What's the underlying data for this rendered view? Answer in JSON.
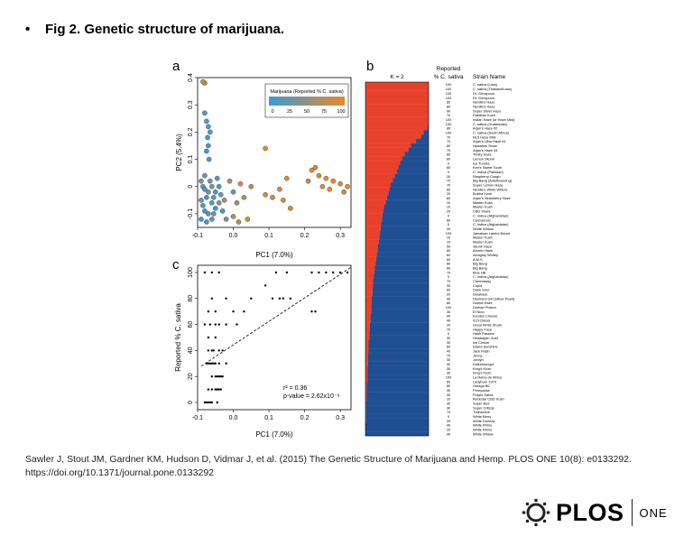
{
  "heading": {
    "bullet": "•",
    "text": "Fig 2. Genetic structure of marijuana."
  },
  "panels": {
    "a": "a",
    "b": "b",
    "c": "c"
  },
  "chart_data": [
    {
      "type": "scatter",
      "panel": "a",
      "xlabel": "PC1 (7.0%)",
      "ylabel": "PC2 (5.4%)",
      "xlim": [
        -0.1,
        0.33
      ],
      "ylim": [
        -0.15,
        0.4
      ],
      "xticks": [
        "-0.1",
        "0.0",
        "0.1",
        "0.2",
        "0.3"
      ],
      "yticks": [
        "-0.1",
        "0",
        "0.1",
        "0.2",
        "0.3",
        "0.4"
      ],
      "legend": {
        "title": "Marijuana (Reported % C. sativa)",
        "ticks": [
          "0",
          "25",
          "50",
          "75",
          "100"
        ],
        "low_color": "#3a9ad9",
        "high_color": "#e58a2a",
        "position": "top-right"
      },
      "points": [
        {
          "x": -0.08,
          "y": 0.38,
          "s": 90
        },
        {
          "x": -0.085,
          "y": 0.385,
          "s": 85
        },
        {
          "x": -0.08,
          "y": 0.27,
          "s": 10
        },
        {
          "x": -0.075,
          "y": 0.24,
          "s": 15
        },
        {
          "x": -0.07,
          "y": 0.22,
          "s": 10
        },
        {
          "x": -0.065,
          "y": 0.2,
          "s": 20
        },
        {
          "x": -0.072,
          "y": 0.18,
          "s": 5
        },
        {
          "x": -0.07,
          "y": 0.15,
          "s": 10
        },
        {
          "x": -0.075,
          "y": 0.13,
          "s": 0
        },
        {
          "x": -0.068,
          "y": 0.1,
          "s": 15
        },
        {
          "x": -0.08,
          "y": 0.04,
          "s": 25
        },
        {
          "x": -0.09,
          "y": 0.02,
          "s": 30
        },
        {
          "x": -0.085,
          "y": 0.0,
          "s": 20
        },
        {
          "x": -0.08,
          "y": -0.01,
          "s": 10
        },
        {
          "x": -0.07,
          "y": -0.02,
          "s": 40
        },
        {
          "x": -0.075,
          "y": -0.04,
          "s": 5
        },
        {
          "x": -0.09,
          "y": -0.05,
          "s": 30
        },
        {
          "x": -0.085,
          "y": -0.07,
          "s": 15
        },
        {
          "x": -0.08,
          "y": -0.09,
          "s": 0
        },
        {
          "x": -0.07,
          "y": -0.1,
          "s": 20
        },
        {
          "x": -0.09,
          "y": -0.12,
          "s": 10
        },
        {
          "x": -0.075,
          "y": -0.13,
          "s": 0
        },
        {
          "x": -0.06,
          "y": -0.12,
          "s": 30
        },
        {
          "x": -0.055,
          "y": -0.1,
          "s": 25
        },
        {
          "x": -0.05,
          "y": -0.08,
          "s": 0
        },
        {
          "x": -0.06,
          "y": -0.06,
          "s": 10
        },
        {
          "x": -0.055,
          "y": -0.04,
          "s": 20
        },
        {
          "x": -0.05,
          "y": -0.02,
          "s": 0
        },
        {
          "x": -0.06,
          "y": 0.0,
          "s": 40
        },
        {
          "x": -0.065,
          "y": 0.02,
          "s": 30
        },
        {
          "x": -0.045,
          "y": 0.03,
          "s": 10
        },
        {
          "x": -0.04,
          "y": 0.0,
          "s": 15
        },
        {
          "x": -0.035,
          "y": -0.03,
          "s": 20
        },
        {
          "x": -0.04,
          "y": -0.06,
          "s": 40
        },
        {
          "x": -0.03,
          "y": -0.09,
          "s": 10
        },
        {
          "x": -0.02,
          "y": -0.12,
          "s": 30
        },
        {
          "x": -0.025,
          "y": -0.05,
          "s": 60
        },
        {
          "x": -0.01,
          "y": 0.02,
          "s": 70
        },
        {
          "x": 0.0,
          "y": -0.02,
          "s": 20
        },
        {
          "x": 0.01,
          "y": -0.06,
          "s": 60
        },
        {
          "x": 0.02,
          "y": 0.01,
          "s": 80
        },
        {
          "x": 0.03,
          "y": -0.04,
          "s": 70
        },
        {
          "x": 0.04,
          "y": -0.12,
          "s": 80
        },
        {
          "x": 0.05,
          "y": 0.0,
          "s": 75
        },
        {
          "x": 0.0,
          "y": -0.11,
          "s": 75
        },
        {
          "x": 0.015,
          "y": -0.13,
          "s": 80
        },
        {
          "x": 0.09,
          "y": 0.14,
          "s": 100
        },
        {
          "x": 0.09,
          "y": -0.03,
          "s": 90
        },
        {
          "x": 0.11,
          "y": -0.04,
          "s": 80
        },
        {
          "x": 0.13,
          "y": -0.01,
          "s": 80
        },
        {
          "x": 0.15,
          "y": 0.03,
          "s": 100
        },
        {
          "x": 0.14,
          "y": -0.05,
          "s": 80
        },
        {
          "x": 0.16,
          "y": -0.08,
          "s": 90
        },
        {
          "x": 0.22,
          "y": 0.06,
          "s": 100
        },
        {
          "x": 0.23,
          "y": 0.07,
          "s": 90
        },
        {
          "x": 0.24,
          "y": 0.04,
          "s": 100
        },
        {
          "x": 0.21,
          "y": 0.02,
          "s": 80
        },
        {
          "x": 0.26,
          "y": 0.03,
          "s": 100
        },
        {
          "x": 0.25,
          "y": 0.0,
          "s": 90
        },
        {
          "x": 0.28,
          "y": 0.02,
          "s": 100
        },
        {
          "x": 0.27,
          "y": -0.01,
          "s": 100
        },
        {
          "x": 0.3,
          "y": 0.01,
          "s": 90
        },
        {
          "x": 0.32,
          "y": 0.0,
          "s": 100
        },
        {
          "x": 0.31,
          "y": -0.02,
          "s": 80
        }
      ]
    },
    {
      "type": "bar",
      "panel": "b",
      "title": "K = 2",
      "header_reported": "Reported",
      "header_reported_2": "% C. sativa",
      "header_strain": "Strain Name",
      "colors": {
        "cluster1": "#e8412b",
        "cluster2": "#1f4f93"
      },
      "rows": [
        {
          "r": "100",
          "n": "C. sativa (Laos)",
          "f": 1.0
        },
        {
          "r": "100",
          "n": "C. sativa (Thailand/Laos)",
          "f": 1.0
        },
        {
          "r": "100",
          "n": "Dr. Grinspoon",
          "f": 1.0
        },
        {
          "r": "100",
          "n": "Dr. Grinspoon",
          "f": 1.0
        },
        {
          "r": "80",
          "n": "Neville's Haze",
          "f": 1.0
        },
        {
          "r": "80",
          "n": "Neville's Haze",
          "f": 1.0
        },
        {
          "r": "90",
          "n": "Super Silver Haze",
          "f": 1.0
        },
        {
          "r": "70",
          "n": "Pakistan Kush",
          "f": 1.0
        },
        {
          "r": "100",
          "n": "Indian Haze (or Haze Mist)",
          "f": 1.0
        },
        {
          "r": "100",
          "n": "C. sativa (Guatemala)",
          "f": 1.0
        },
        {
          "r": "80",
          "n": "Arjan's Haze #2",
          "f": 0.98
        },
        {
          "r": "100",
          "n": "C. sativa (South Africa)",
          "f": 0.92
        },
        {
          "r": "70",
          "n": "NL5 Haze Mist",
          "f": 0.88
        },
        {
          "r": "70",
          "n": "Arjan's Ultra Haze #1",
          "f": 0.8
        },
        {
          "r": "80",
          "n": "Hawaiian Snow",
          "f": 0.72
        },
        {
          "r": "70",
          "n": "Arjan's Haze #3",
          "f": 0.68
        },
        {
          "r": "60",
          "n": "Trinity Haze",
          "f": 0.62
        },
        {
          "r": "60",
          "n": "Lemon Skunk",
          "f": 0.58
        },
        {
          "r": "0",
          "n": "Ice Tundra",
          "f": 0.55
        },
        {
          "r": "60",
          "n": "Ken's Sweet Tooth",
          "f": 0.52
        },
        {
          "r": "0",
          "n": "C. indica (Pakistan)",
          "f": 0.5
        },
        {
          "r": "30",
          "n": "Raspberry Cough",
          "f": 0.46
        },
        {
          "r": "70",
          "n": "Big Bang (Autoflowering)",
          "f": 0.43
        },
        {
          "r": "70",
          "n": "Super Lemon Haze",
          "f": 0.4
        },
        {
          "r": "60",
          "n": "Neville's White Widow",
          "f": 0.38
        },
        {
          "r": "20",
          "n": "Bubba Kush",
          "f": 0.36
        },
        {
          "r": "80",
          "n": "Arjan's Strawberry Haze",
          "f": 0.34
        },
        {
          "r": "10",
          "n": "Master Kush",
          "f": 0.32
        },
        {
          "r": "10",
          "n": "Master Kush",
          "f": 0.3
        },
        {
          "r": "20",
          "n": "CBD Shark",
          "f": 0.28
        },
        {
          "r": "0",
          "n": "C. indica (Afghanistan)",
          "f": 0.27
        },
        {
          "r": "60",
          "n": "Cannatonic",
          "f": 0.26
        },
        {
          "r": "0",
          "n": "C. indica (Afghanistan)",
          "f": 0.25
        },
        {
          "r": "40",
          "n": "White Widow",
          "f": 0.24
        },
        {
          "r": "100",
          "n": "Jamaican Lambs Bread",
          "f": 0.23
        },
        {
          "r": "10",
          "n": "Master Kush",
          "f": 0.22
        },
        {
          "r": "10",
          "n": "Master Kush",
          "f": 0.21
        },
        {
          "r": "50",
          "n": "Skunk Haze",
          "f": 0.2
        },
        {
          "r": "80",
          "n": "Atomic Haze",
          "f": 0.19
        },
        {
          "r": "60",
          "n": "Almighty Whitey",
          "f": 0.18
        },
        {
          "r": "60",
          "n": "A.M.S.",
          "f": 0.17
        },
        {
          "r": "60",
          "n": "Big Bang",
          "f": 0.16
        },
        {
          "r": "60",
          "n": "Big Bang",
          "f": 0.15
        },
        {
          "r": "70",
          "n": "Blue Hill",
          "f": 0.14
        },
        {
          "r": "0",
          "n": "C. indica (Afghanistan)",
          "f": 0.13
        },
        {
          "r": "70",
          "n": "Chemdawg",
          "f": 0.12
        },
        {
          "r": "30",
          "n": "Cupid",
          "f": 0.12
        },
        {
          "r": "60",
          "n": "Dank Sour",
          "f": 0.11
        },
        {
          "r": "20",
          "n": "Delahaze",
          "f": 0.11
        },
        {
          "r": "40",
          "n": "Diamond Girl (Silver Pearl)",
          "f": 0.1
        },
        {
          "r": "80",
          "n": "Donna Haze",
          "f": 0.1
        },
        {
          "r": "100",
          "n": "Durban Poison",
          "f": 0.09
        },
        {
          "r": "30",
          "n": "El Nino",
          "f": 0.09
        },
        {
          "r": "40",
          "n": "Exodus Cheese",
          "f": 0.08
        },
        {
          "r": "40",
          "n": "G13 Diesel",
          "f": 0.08
        },
        {
          "r": "20",
          "n": "Great White Shark",
          "f": 0.07
        },
        {
          "r": "70",
          "n": "Happy Face",
          "f": 0.07
        },
        {
          "r": "0",
          "n": "Hash Passion",
          "f": 0.06
        },
        {
          "r": "30",
          "n": "Himalayan Gold",
          "f": 0.06
        },
        {
          "r": "30",
          "n": "Ice Cream",
          "f": 0.05
        },
        {
          "r": "60",
          "n": "Island Sunshine",
          "f": 0.05
        },
        {
          "r": "40",
          "n": "Jack Flash",
          "f": 0.05
        },
        {
          "r": "70",
          "n": "Jenny",
          "f": 0.04
        },
        {
          "r": "30",
          "n": "Jordyn",
          "f": 0.04
        },
        {
          "r": "40",
          "n": "Kaleidoscope",
          "f": 0.04
        },
        {
          "r": "30",
          "n": "King's Kush",
          "f": 0.03
        },
        {
          "r": "30",
          "n": "King's Kush",
          "f": 0.03
        },
        {
          "r": "100",
          "n": "La Reina de Africa",
          "f": 0.03
        },
        {
          "r": "60",
          "n": "Ladyburn 1974",
          "f": 0.03
        },
        {
          "r": "80",
          "n": "Omega BC",
          "f": 0.02
        },
        {
          "r": "30",
          "n": "Pennywise",
          "f": 0.02
        },
        {
          "r": "30",
          "n": "Purple Satva",
          "f": 0.02
        },
        {
          "r": "10",
          "n": "Rockstar CBD Kush",
          "f": 0.02
        },
        {
          "r": "30",
          "n": "Super Bud",
          "f": 0.01
        },
        {
          "r": "30",
          "n": "Super Critical",
          "f": 0.01
        },
        {
          "r": "70",
          "n": "Trainwreck",
          "f": 0.01
        },
        {
          "r": "0",
          "n": "White Berry",
          "f": 0.01
        },
        {
          "r": "20",
          "n": "White Domina",
          "f": 0.01
        },
        {
          "r": "40",
          "n": "White Rhino",
          "f": 0.0
        },
        {
          "r": "20",
          "n": "White Rhino",
          "f": 0.0
        },
        {
          "r": "40",
          "n": "White Widow",
          "f": 0.0
        }
      ]
    },
    {
      "type": "scatter",
      "panel": "c",
      "xlabel": "PC1 (7.0%)",
      "ylabel": "Reported % C. sativa",
      "xlim": [
        -0.1,
        0.33
      ],
      "ylim": [
        0,
        100
      ],
      "xticks": [
        "-0.1",
        "0.0",
        "0.1",
        "0.2",
        "0.3"
      ],
      "yticks": [
        "0",
        "20",
        "40",
        "60",
        "80",
        "100"
      ],
      "annotation_r2": "r² = 0.36",
      "annotation_p": "p-value = 2.62x10⁻⁹",
      "trendline": {
        "x": [
          -0.09,
          0.33
        ],
        "y": [
          28,
          104
        ]
      },
      "points": [
        {
          "x": -0.08,
          "y": 0
        },
        {
          "x": -0.075,
          "y": 0
        },
        {
          "x": -0.07,
          "y": 0
        },
        {
          "x": -0.065,
          "y": 0
        },
        {
          "x": -0.06,
          "y": 0
        },
        {
          "x": -0.045,
          "y": 0
        },
        {
          "x": -0.07,
          "y": 10
        },
        {
          "x": -0.06,
          "y": 10
        },
        {
          "x": -0.05,
          "y": 10
        },
        {
          "x": -0.045,
          "y": 10
        },
        {
          "x": -0.04,
          "y": 10
        },
        {
          "x": -0.035,
          "y": 10
        },
        {
          "x": -0.06,
          "y": 20
        },
        {
          "x": -0.05,
          "y": 20
        },
        {
          "x": -0.045,
          "y": 20
        },
        {
          "x": -0.04,
          "y": 20
        },
        {
          "x": -0.035,
          "y": 20
        },
        {
          "x": -0.03,
          "y": 20
        },
        {
          "x": -0.075,
          "y": 30
        },
        {
          "x": -0.07,
          "y": 30
        },
        {
          "x": -0.065,
          "y": 30
        },
        {
          "x": -0.06,
          "y": 30
        },
        {
          "x": -0.055,
          "y": 30
        },
        {
          "x": -0.05,
          "y": 30
        },
        {
          "x": -0.04,
          "y": 30
        },
        {
          "x": -0.02,
          "y": 30
        },
        {
          "x": -0.07,
          "y": 40
        },
        {
          "x": -0.06,
          "y": 40
        },
        {
          "x": -0.055,
          "y": 40
        },
        {
          "x": -0.04,
          "y": 40
        },
        {
          "x": -0.03,
          "y": 40
        },
        {
          "x": -0.07,
          "y": 50
        },
        {
          "x": -0.05,
          "y": 50
        },
        {
          "x": -0.08,
          "y": 60
        },
        {
          "x": -0.065,
          "y": 60
        },
        {
          "x": -0.05,
          "y": 60
        },
        {
          "x": -0.04,
          "y": 60
        },
        {
          "x": -0.02,
          "y": 60
        },
        {
          "x": 0.01,
          "y": 60
        },
        {
          "x": -0.07,
          "y": 70
        },
        {
          "x": -0.05,
          "y": 70
        },
        {
          "x": 0.0,
          "y": 70
        },
        {
          "x": 0.03,
          "y": 70
        },
        {
          "x": -0.06,
          "y": 80
        },
        {
          "x": -0.02,
          "y": 80
        },
        {
          "x": 0.05,
          "y": 80
        },
        {
          "x": 0.11,
          "y": 80
        },
        {
          "x": 0.13,
          "y": 80
        },
        {
          "x": 0.14,
          "y": 80
        },
        {
          "x": 0.16,
          "y": 80
        },
        {
          "x": 0.09,
          "y": 90
        },
        {
          "x": 0.22,
          "y": 70
        },
        {
          "x": 0.23,
          "y": 70
        },
        {
          "x": -0.08,
          "y": 100
        },
        {
          "x": -0.06,
          "y": 100
        },
        {
          "x": -0.04,
          "y": 100
        },
        {
          "x": 0.12,
          "y": 100
        },
        {
          "x": 0.15,
          "y": 100
        },
        {
          "x": 0.22,
          "y": 100
        },
        {
          "x": 0.24,
          "y": 100
        },
        {
          "x": 0.26,
          "y": 100
        },
        {
          "x": 0.28,
          "y": 100
        },
        {
          "x": 0.3,
          "y": 100
        },
        {
          "x": 0.32,
          "y": 100
        }
      ]
    }
  ],
  "citation": "Sawler J, Stout JM, Gardner KM, Hudson D, Vidmar J, et al. (2015) The Genetic Structure of Marijuana and Hemp. PLOS ONE 10(8): e0133292. https://doi.org/10.1371/journal.pone.0133292",
  "logo": {
    "text": "PLOS",
    "journal": "ONE"
  }
}
